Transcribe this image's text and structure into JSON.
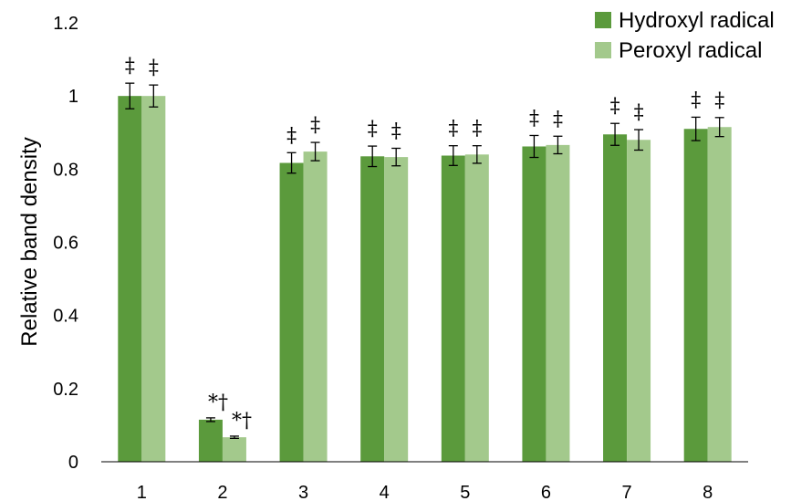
{
  "chart_data": {
    "type": "bar",
    "categories": [
      "1",
      "2",
      "3",
      "4",
      "5",
      "6",
      "7",
      "8"
    ],
    "ylabel": "Relative band density",
    "xlabel": "",
    "ylim": [
      0,
      1.2
    ],
    "yticks": [
      "0",
      "0.2",
      "0.4",
      "0.6",
      "0.8",
      "1",
      "1.2"
    ],
    "grid": false,
    "legend_position": "top-right",
    "series": [
      {
        "name": "Hydroxyl radical",
        "color": "#5b9a3c",
        "values": [
          1.0,
          0.115,
          0.817,
          0.835,
          0.837,
          0.862,
          0.895,
          0.91
        ],
        "errors": [
          0.035,
          0.005,
          0.028,
          0.028,
          0.027,
          0.03,
          0.03,
          0.032
        ],
        "annotations": [
          "‡",
          "*†",
          "‡",
          "‡",
          "‡",
          "‡",
          "‡",
          "‡"
        ]
      },
      {
        "name": "Peroxyl radical",
        "color": "#a3c98c",
        "values": [
          1.0,
          0.067,
          0.848,
          0.833,
          0.84,
          0.866,
          0.88,
          0.915
        ],
        "errors": [
          0.03,
          0.003,
          0.025,
          0.024,
          0.024,
          0.024,
          0.028,
          0.026
        ],
        "annotations": [
          "‡",
          "*†",
          "‡",
          "‡",
          "‡",
          "‡",
          "‡",
          "‡"
        ]
      }
    ]
  }
}
